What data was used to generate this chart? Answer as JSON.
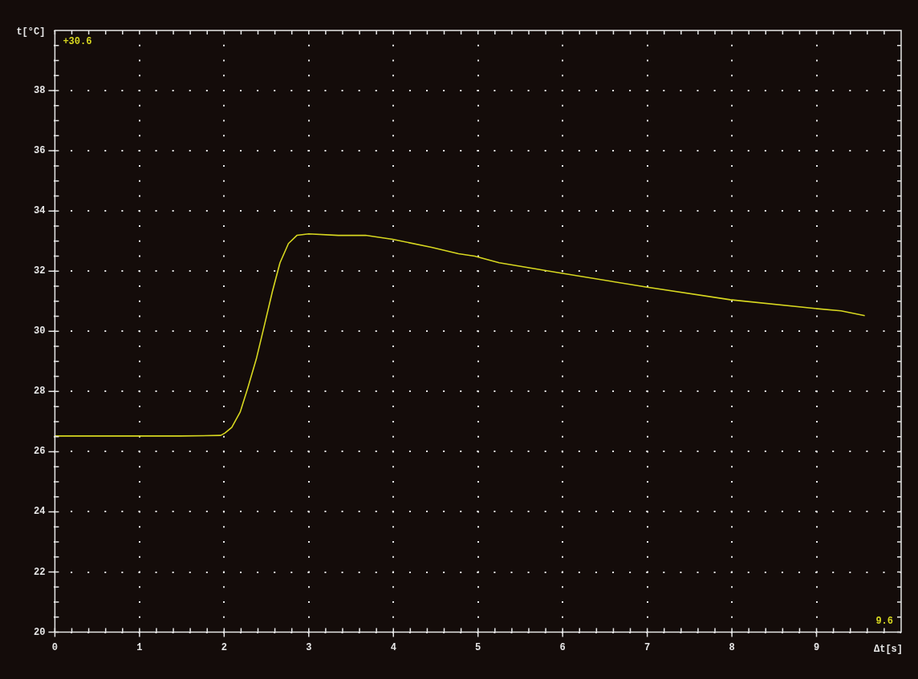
{
  "chart_data": {
    "type": "line",
    "xlabel": "Δt[s]",
    "ylabel": "t[°C]",
    "annotations": [
      "+30.6",
      "9.6"
    ],
    "x": [
      0,
      0.9,
      1.48,
      1.96,
      2.01,
      2.09,
      2.19,
      2.28,
      2.38,
      2.48,
      2.57,
      2.66,
      2.76,
      2.86,
      3.0,
      3.35,
      3.67,
      3.99,
      4.45,
      4.77,
      4.96,
      5.25,
      5.97,
      6.97,
      7.98,
      8.98,
      9.29,
      9.57
    ],
    "series": [
      {
        "color": "#d8d820",
        "values": [
          26.52,
          26.52,
          26.52,
          26.54,
          26.62,
          26.81,
          27.32,
          28.12,
          29.08,
          30.25,
          31.32,
          32.28,
          32.92,
          33.19,
          33.24,
          33.19,
          33.19,
          33.06,
          32.79,
          32.58,
          32.5,
          32.28,
          31.94,
          31.48,
          31.05,
          30.76,
          30.68,
          30.52
        ]
      }
    ],
    "xlim": [
      0,
      10
    ],
    "ylim": [
      20,
      40
    ],
    "xticks": [
      0,
      {
        "value": 0.2,
        "label": null
      },
      {
        "value": 0.4,
        "label": null
      },
      {
        "value": 0.6,
        "label": null
      },
      {
        "value": 0.8,
        "label": null
      },
      1,
      {
        "value": 1.2,
        "label": null
      },
      {
        "value": 1.4,
        "label": null
      },
      {
        "value": 1.6,
        "label": null
      },
      {
        "value": 1.8,
        "label": null
      },
      2,
      {
        "value": 2.2,
        "label": null
      },
      {
        "value": 2.4,
        "label": null
      },
      {
        "value": 2.6,
        "label": null
      },
      {
        "value": 2.8,
        "label": null
      },
      3,
      {
        "value": 3.2,
        "label": null
      },
      {
        "value": 3.4,
        "label": null
      },
      {
        "value": 3.6,
        "label": null
      },
      {
        "value": 3.8,
        "label": null
      },
      4,
      {
        "value": 4.2,
        "label": null
      },
      {
        "value": 4.4,
        "label": null
      },
      {
        "value": 4.6,
        "label": null
      },
      {
        "value": 4.8,
        "label": null
      },
      5,
      {
        "value": 5.2,
        "label": null
      },
      {
        "value": 5.4,
        "label": null
      },
      {
        "value": 5.6,
        "label": null
      },
      {
        "value": 5.8,
        "label": null
      },
      6,
      {
        "value": 6.2,
        "label": null
      },
      {
        "value": 6.4,
        "label": null
      },
      {
        "value": 6.6,
        "label": null
      },
      {
        "value": 6.8,
        "label": null
      },
      7,
      {
        "value": 7.2,
        "label": null
      },
      {
        "value": 7.4,
        "label": null
      },
      {
        "value": 7.6,
        "label": null
      },
      {
        "value": 7.8,
        "label": null
      },
      8,
      {
        "value": 8.2,
        "label": null
      },
      {
        "value": 8.4,
        "label": null
      },
      {
        "value": 8.6,
        "label": null
      },
      {
        "value": 8.8,
        "label": null
      },
      9,
      {
        "value": 9.2,
        "label": null
      },
      {
        "value": 9.4,
        "label": null
      },
      {
        "value": 9.6,
        "label": null
      },
      {
        "value": 9.8,
        "label": null
      }
    ],
    "yticks": [
      20,
      {
        "value": 20.5,
        "label": null
      },
      {
        "value": 21,
        "label": null
      },
      {
        "value": 21.5,
        "label": null
      },
      22,
      {
        "value": 22.5,
        "label": null
      },
      {
        "value": 23,
        "label": null
      },
      {
        "value": 23.5,
        "label": null
      },
      24,
      {
        "value": 24.5,
        "label": null
      },
      {
        "value": 25,
        "label": null
      },
      {
        "value": 25.5,
        "label": null
      },
      26,
      {
        "value": 26.5,
        "label": null
      },
      {
        "value": 27,
        "label": null
      },
      {
        "value": 27.5,
        "label": null
      },
      28,
      {
        "value": 28.5,
        "label": null
      },
      {
        "value": 29,
        "label": null
      },
      {
        "value": 29.5,
        "label": null
      },
      30,
      {
        "value": 30.5,
        "label": null
      },
      {
        "value": 31,
        "label": null
      },
      {
        "value": 31.5,
        "label": null
      },
      32,
      {
        "value": 32.5,
        "label": null
      },
      {
        "value": 33,
        "label": null
      },
      {
        "value": 33.5,
        "label": null
      },
      34,
      {
        "value": 34.5,
        "label": null
      },
      {
        "value": 35,
        "label": null
      },
      {
        "value": 35.5,
        "label": null
      },
      36,
      {
        "value": 36.5,
        "label": null
      },
      {
        "value": 37,
        "label": null
      },
      {
        "value": 37.5,
        "label": null
      },
      38,
      {
        "value": 38.5,
        "label": null
      },
      {
        "value": 39,
        "label": null
      },
      {
        "value": 39.5,
        "label": null
      }
    ],
    "grid": true,
    "marker": "none",
    "line_style": "solid",
    "legend": false
  }
}
